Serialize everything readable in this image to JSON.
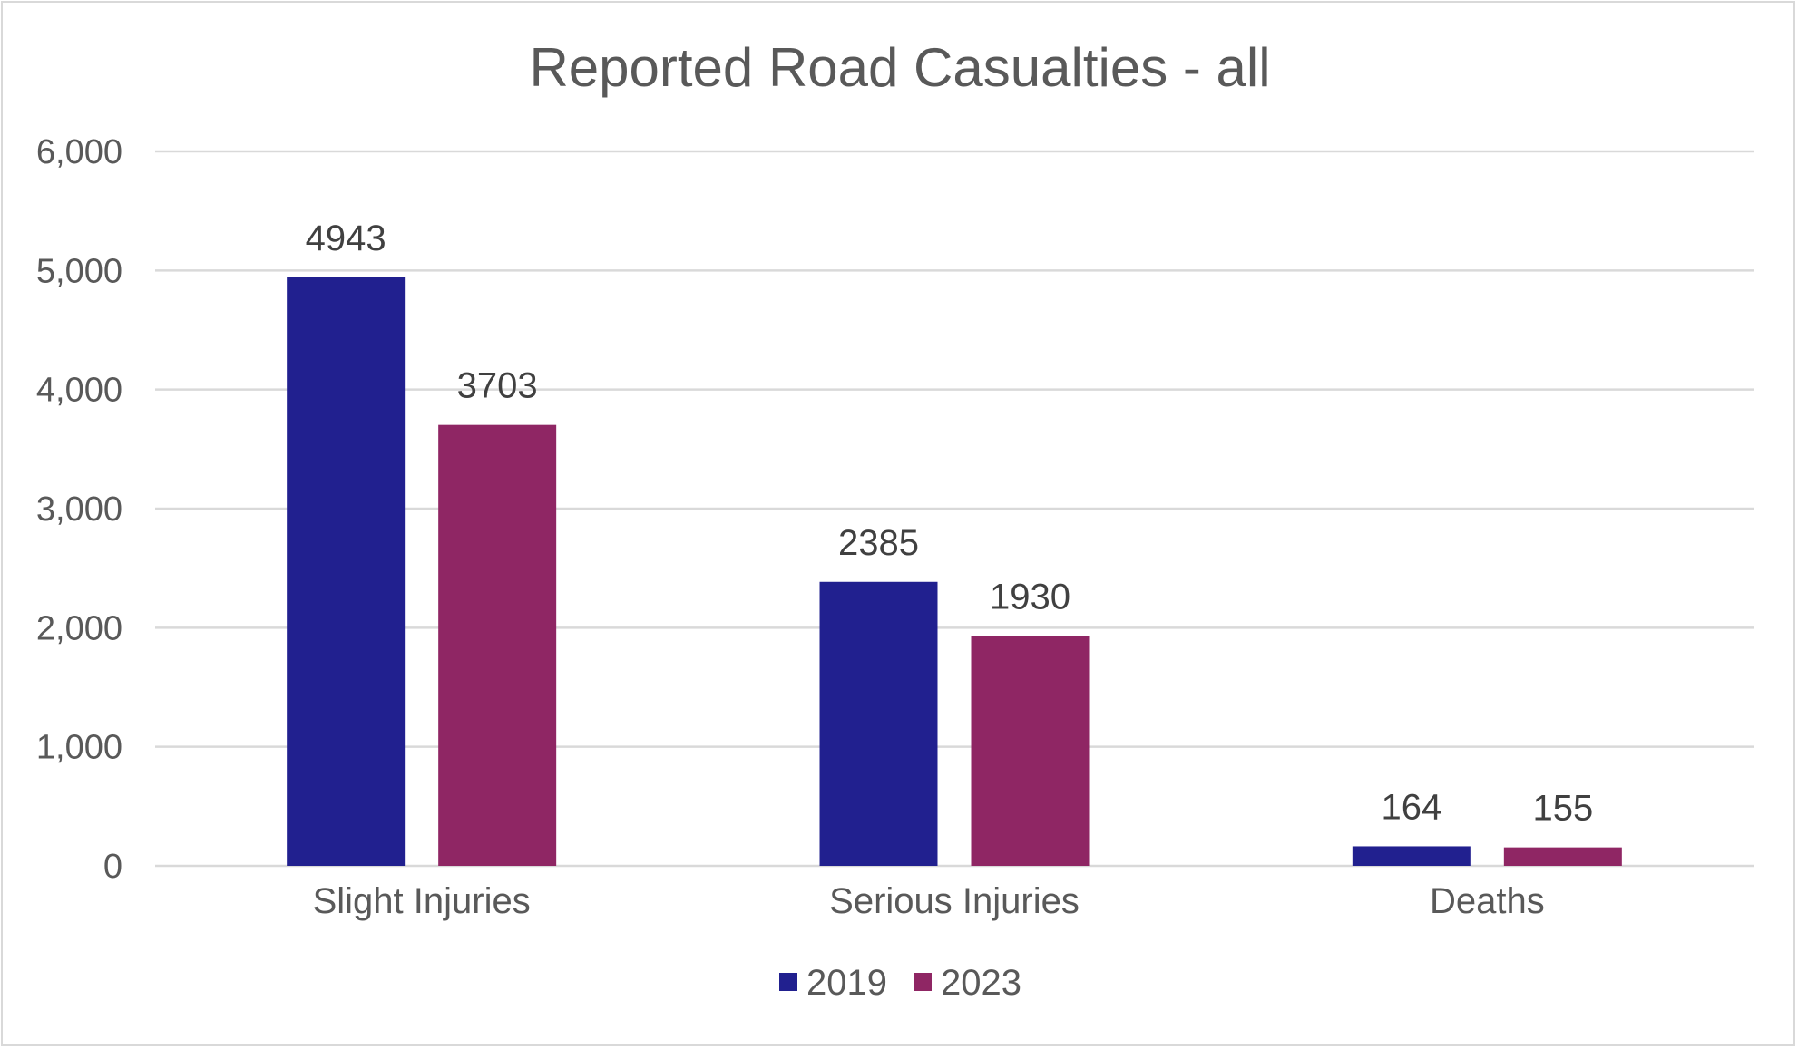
{
  "chart_data": {
    "type": "bar",
    "title": "Reported Road Casualties - all",
    "categories": [
      "Slight Injuries",
      "Serious Injuries",
      "Deaths"
    ],
    "series": [
      {
        "name": "2019",
        "values": [
          4943,
          2385,
          164
        ],
        "color": "#21208f"
      },
      {
        "name": "2023",
        "values": [
          3703,
          1930,
          155
        ],
        "color": "#8f2664"
      }
    ],
    "ylim": [
      0,
      6000
    ],
    "yticks": [
      0,
      1000,
      2000,
      3000,
      4000,
      5000,
      6000
    ],
    "ytick_labels": [
      "0",
      "1,000",
      "2,000",
      "3,000",
      "4,000",
      "5,000",
      "6,000"
    ],
    "grid": true,
    "legend_position": "bottom",
    "data_labels": true
  }
}
